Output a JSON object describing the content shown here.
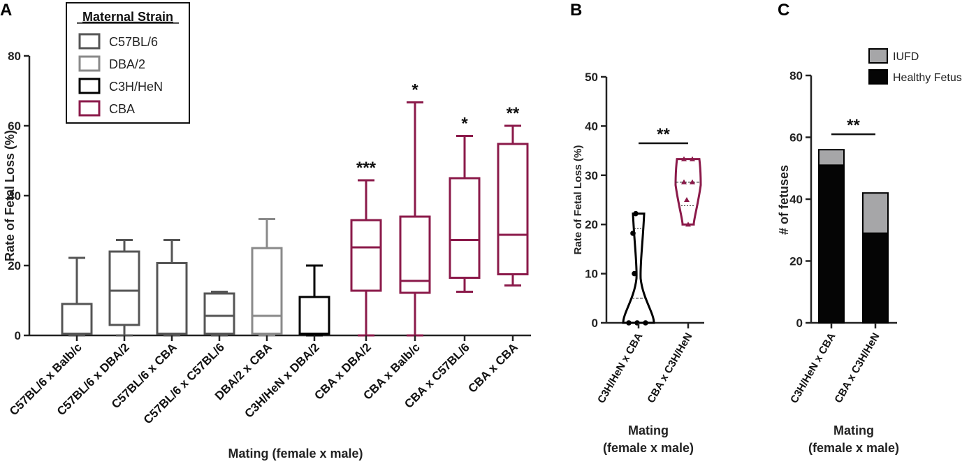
{
  "panels": {
    "a": "A",
    "b": "B",
    "c": "C"
  },
  "legend_a": {
    "title": "Maternal Strain",
    "items": [
      {
        "label": "C57BL/6",
        "color": "#555555"
      },
      {
        "label": "DBA/2",
        "color": "#8a8a8a"
      },
      {
        "label": "C3H/HeN",
        "color": "#000000"
      },
      {
        "label": "CBA",
        "color": "#8b1a4a"
      }
    ]
  },
  "legend_c": {
    "items": [
      {
        "label": "IUFD",
        "color": "#a6a6a8"
      },
      {
        "label": "Healthy Fetus",
        "color": "#050505"
      }
    ]
  },
  "chart_data": [
    {
      "type": "box",
      "panel": "A",
      "ylabel": "Rate of Fetal Loss (%)",
      "xlabel": "Mating (female x male)",
      "ylim": [
        0,
        80
      ],
      "yticks": [
        "0",
        "20",
        "40",
        "60",
        "80"
      ],
      "categories": [
        {
          "label": "C57BL/6 x Balb/c",
          "strain": "C57BL/6",
          "min": 0,
          "q1": 0.5,
          "median": 0.5,
          "q3": 9,
          "max": 22.2,
          "sig": ""
        },
        {
          "label": "C57BL/6 x DBA/2",
          "strain": "C57BL/6",
          "min": 0,
          "q1": 3,
          "median": 12.8,
          "q3": 24,
          "max": 27.3,
          "sig": ""
        },
        {
          "label": "C57BL/6 x CBA",
          "strain": "C57BL/6",
          "min": 0,
          "q1": 0.5,
          "median": 0.5,
          "q3": 20.7,
          "max": 27.3,
          "sig": ""
        },
        {
          "label": "C57BL/6 x C57BL/6",
          "strain": "C57BL/6",
          "min": 0,
          "q1": 0.5,
          "median": 5.6,
          "q3": 12,
          "max": 12.5,
          "sig": ""
        },
        {
          "label": "DBA/2 x CBA",
          "strain": "DBA/2",
          "min": 0,
          "q1": 0.5,
          "median": 5.6,
          "q3": 25,
          "max": 33.3,
          "sig": ""
        },
        {
          "label": "C3H/HeN x DBA/2",
          "strain": "C3H/HeN",
          "min": 0,
          "q1": 0.5,
          "median": 0.5,
          "q3": 11,
          "max": 20,
          "sig": ""
        },
        {
          "label": "CBA x DBA/2",
          "strain": "CBA",
          "min": 0,
          "q1": 12.8,
          "median": 25.2,
          "q3": 33,
          "max": 44.4,
          "sig": "***"
        },
        {
          "label": "CBA x Balb/c",
          "strain": "CBA",
          "min": 0,
          "q1": 12.2,
          "median": 15.6,
          "q3": 34,
          "max": 66.7,
          "sig": "*"
        },
        {
          "label": "CBA x C57BL/6",
          "strain": "CBA",
          "min": 12.5,
          "q1": 16.5,
          "median": 27.3,
          "q3": 45,
          "max": 57.1,
          "sig": "*"
        },
        {
          "label": "CBA x CBA",
          "strain": "CBA",
          "min": 14.3,
          "q1": 17.5,
          "median": 28.8,
          "q3": 54.8,
          "max": 60,
          "sig": "**"
        }
      ]
    },
    {
      "type": "violin",
      "panel": "B",
      "ylabel": "Rate of Fetal Loss (%)",
      "xlabel_line1": "Mating",
      "xlabel_line2": "(female x male)",
      "ylim": [
        0,
        50
      ],
      "yticks": [
        "0",
        "10",
        "20",
        "30",
        "40",
        "50"
      ],
      "sig": "**",
      "groups": [
        {
          "label": "C3H/HeN x CBA",
          "color": "#000000",
          "points": [
            22.2,
            18.2,
            10,
            0,
            0,
            0
          ],
          "median": 5,
          "q3": 19.2,
          "min": 0,
          "max": 22.2
        },
        {
          "label": "CBA x C3H/HeN",
          "color": "#8b1a4a",
          "points": [
            33.3,
            33.3,
            28.6,
            28.6,
            25,
            20
          ],
          "median": 28.6,
          "q1": 23.8,
          "min": 20,
          "max": 33.3
        }
      ]
    },
    {
      "type": "stacked-bar",
      "panel": "C",
      "ylabel": "# of fetuses",
      "xlabel_line1": "Mating",
      "xlabel_line2": "(female x male)",
      "ylim": [
        0,
        80
      ],
      "yticks": [
        "0",
        "20",
        "40",
        "60",
        "80"
      ],
      "sig": "**",
      "categories": [
        "C3H/HeN x CBA",
        "CBA x C3H/HeN"
      ],
      "series": [
        {
          "name": "Healthy Fetus",
          "values": [
            51,
            29
          ]
        },
        {
          "name": "IUFD",
          "values": [
            5,
            13
          ]
        }
      ]
    }
  ]
}
